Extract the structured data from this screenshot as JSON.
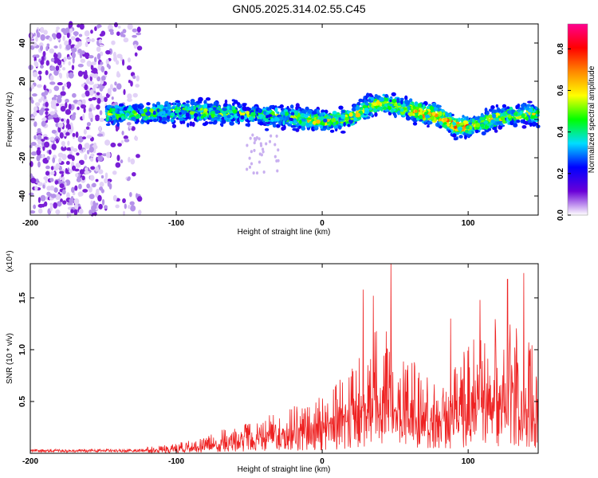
{
  "title": "GN05.2025.314.02.55.C45",
  "chart_data": [
    {
      "type": "heatmap",
      "xlabel": "Height of straight line (km)",
      "ylabel": "Frequency (Hz)",
      "xlim": [
        -200,
        148
      ],
      "ylim": [
        -50,
        50
      ],
      "xticks": [
        -200,
        -100,
        0,
        100
      ],
      "yticks": [
        -40,
        -20,
        0,
        20,
        40
      ],
      "colorbar": {
        "label": "Normalized spectral amplitude",
        "range": [
          0.0,
          0.92
        ],
        "ticks": [
          0.0,
          0.2,
          0.4,
          0.6,
          0.8
        ],
        "tick_labels": [
          "0.0",
          "0.2",
          "0.4",
          "0.6",
          "0.8"
        ],
        "colormap": [
          "#ffffff",
          "#6a00d8",
          "#0000ff",
          "#00ddff",
          "#00ff00",
          "#ffff00",
          "#ff8800",
          "#ff0000",
          "#ff0090"
        ]
      },
      "ridge_trace": {
        "x": [
          -145,
          -120,
          -100,
          -80,
          -60,
          -40,
          -20,
          0,
          20,
          30,
          40,
          50,
          60,
          70,
          80,
          90,
          100,
          110,
          120,
          130,
          140,
          148
        ],
        "y": [
          3,
          3,
          4,
          4,
          3,
          2,
          1,
          -1,
          1,
          6,
          9,
          7,
          5,
          3,
          2,
          -3,
          -4,
          -2,
          1,
          2,
          3,
          2
        ]
      },
      "high_amplitude_region": {
        "x": [
          60,
          100
        ],
        "peak": 0.9
      }
    },
    {
      "type": "line",
      "color": "#ee2222",
      "xlabel": "Height of straight line (km)",
      "ylabel": "SNR (10 * v/v)",
      "scale_label": "(x10⁴)",
      "xlim": [
        -200,
        148
      ],
      "ylim": [
        0,
        1.83
      ],
      "xticks": [
        -200,
        -100,
        0,
        100
      ],
      "yticks": [
        0.5,
        1.0,
        1.5
      ],
      "ytick_labels": [
        "0.5",
        "1.0",
        "1.5"
      ],
      "envelope": {
        "x": [
          -200,
          -160,
          -140,
          -120,
          -100,
          -80,
          -60,
          -40,
          -20,
          0,
          20,
          40,
          60,
          80,
          100,
          120,
          148
        ],
        "y": [
          0.02,
          0.02,
          0.03,
          0.06,
          0.1,
          0.16,
          0.28,
          0.36,
          0.48,
          0.55,
          0.9,
          1.25,
          0.95,
          0.65,
          1.1,
          1.35,
          1.05
        ]
      },
      "peaks": [
        {
          "x": 47,
          "y": 1.83
        },
        {
          "x": 138,
          "y": 1.74
        },
        {
          "x": 127,
          "y": 1.68
        },
        {
          "x": 28,
          "y": 1.58
        },
        {
          "x": 108,
          "y": 1.48
        },
        {
          "x": 35,
          "y": 1.52
        },
        {
          "x": 88,
          "y": 1.3
        }
      ]
    }
  ]
}
